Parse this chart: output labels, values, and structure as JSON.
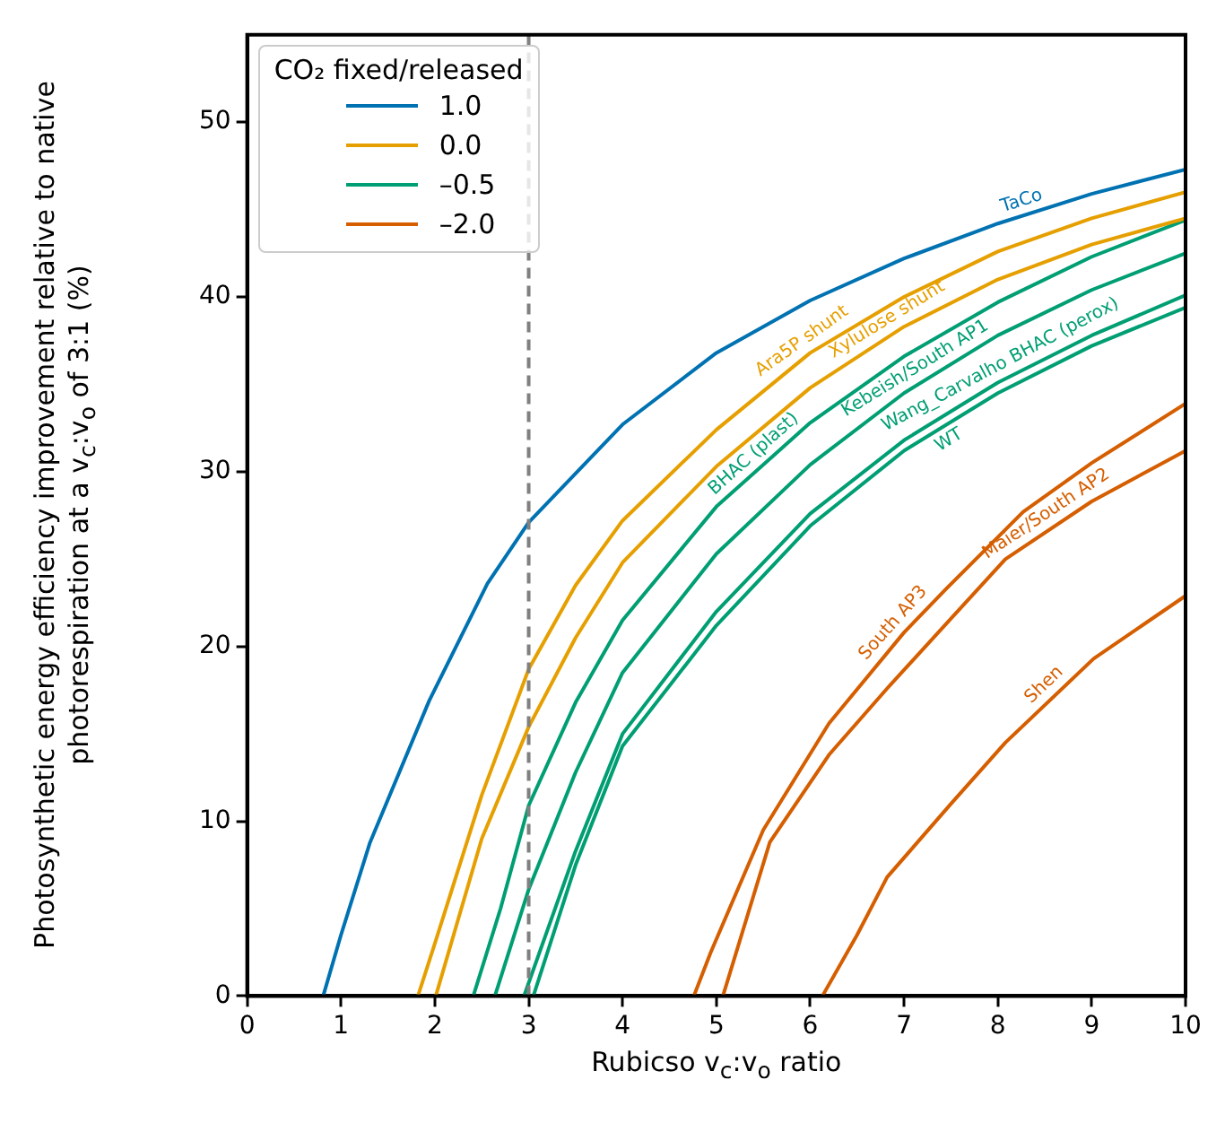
{
  "chart_data": {
    "type": "line",
    "xlabel": "Rubicso v$_{c}$:v$_{o}$ ratio",
    "ylabel": "Photosynthetic energy efficiency improvement relative to native photorespiration at a v$_{c}$:v$_{o}$ of 3:1 (%)",
    "legend_title": "CO₂ fixed/released",
    "legend": "top left",
    "marker": "none",
    "line_style": "solid",
    "grid": false,
    "xlim": [
      0,
      10
    ],
    "xticks": [
      0,
      1,
      2,
      3,
      4,
      5,
      6,
      7,
      8,
      9,
      10
    ],
    "ylim": [
      0,
      55
    ],
    "yticks": [
      0,
      10,
      20,
      30,
      40,
      50
    ],
    "ref_lines": [
      {
        "axis": "x",
        "value": 3,
        "color": "#808080",
        "line_style": "dashed"
      }
    ],
    "series": [
      {
        "name": "1.0",
        "color": "#0072b2",
        "x": [
          0.81,
          1.0,
          1.31,
          1.94,
          2.56,
          3,
          4,
          5,
          6,
          7,
          8,
          9,
          10
        ],
        "values": [
          0,
          3.5,
          8.8,
          16.9,
          23.6,
          27.1,
          32.7,
          36.8,
          39.8,
          42.2,
          44.2,
          45.9,
          47.3
        ]
      },
      {
        "name": "0.0",
        "color": "#e69f00",
        "x": [
          1.82,
          2,
          2.5,
          3,
          3.5,
          4,
          5,
          6,
          7,
          8,
          9,
          10
        ],
        "values": [
          0,
          3,
          11.5,
          18.7,
          23.5,
          27.2,
          32.4,
          36.8,
          40,
          42.6,
          44.5,
          46
        ]
      },
      {
        "color": "#e69f00",
        "x": [
          2.01,
          2.5,
          3,
          3.5,
          4,
          5,
          6,
          7,
          8,
          9,
          10
        ],
        "values": [
          0,
          9,
          15.4,
          20.5,
          24.8,
          30.3,
          34.8,
          38.3,
          41,
          43,
          44.5
        ]
      },
      {
        "name": "–0.5",
        "color": "#009e73",
        "x": [
          2.41,
          2.7,
          3,
          3.5,
          4,
          5,
          6,
          7,
          8,
          9,
          10
        ],
        "values": [
          0,
          5,
          10.9,
          16.8,
          21.5,
          28,
          32.8,
          36.6,
          39.7,
          42.3,
          44.4
        ]
      },
      {
        "color": "#009e73",
        "x": [
          2.64,
          3,
          3.5,
          4,
          5,
          6,
          7,
          8,
          9,
          10
        ],
        "values": [
          0,
          6.1,
          12.8,
          18.5,
          25.3,
          30.4,
          34.5,
          37.8,
          40.4,
          42.5
        ]
      },
      {
        "color": "#009e73",
        "x": [
          2.95,
          3.5,
          4,
          5,
          6,
          7,
          8,
          9,
          10
        ],
        "values": [
          0,
          8.3,
          15,
          22,
          27.6,
          31.8,
          35.1,
          37.8,
          40.1
        ]
      },
      {
        "color": "#009e73",
        "x": [
          3.05,
          3.5,
          4,
          5,
          6,
          7,
          8,
          9,
          10
        ],
        "values": [
          0,
          7.5,
          14.3,
          21.2,
          26.9,
          31.2,
          34.5,
          37.2,
          39.4
        ]
      },
      {
        "name": "–2.0",
        "color": "#d55e00",
        "x": [
          4.76,
          4.94,
          5.5,
          6.2,
          7,
          7.45,
          8.27,
          9,
          10
        ],
        "values": [
          0,
          2.5,
          9.5,
          15.6,
          20.8,
          23.3,
          27.7,
          30.5,
          33.9
        ]
      },
      {
        "color": "#d55e00",
        "x": [
          5.07,
          5.57,
          6.2,
          6.82,
          7.5,
          8.08,
          9,
          10
        ],
        "values": [
          0,
          8.8,
          13.8,
          17.6,
          21.6,
          25,
          28.3,
          31.2
        ]
      },
      {
        "color": "#d55e00",
        "x": [
          6.13,
          6.5,
          6.82,
          7.5,
          8.08,
          9.02,
          10
        ],
        "values": [
          0,
          3.5,
          6.8,
          11,
          14.5,
          19.3,
          22.9
        ]
      }
    ],
    "annotations": [
      {
        "text": "TaCo",
        "x": 8.3,
        "y": 44.7
      },
      {
        "text": "Ara5P shunt",
        "x": 6.0,
        "y": 36.8
      },
      {
        "text": "Xylulose shunt",
        "x": 6.9,
        "y": 38.0
      },
      {
        "text": "BHAC (plast)",
        "x": 5.5,
        "y": 30.4
      },
      {
        "text": "Kebeish/South AP1",
        "x": 7.2,
        "y": 35.2
      },
      {
        "text": "Wang_Carvalho BHAC (perox)",
        "x": 8.1,
        "y": 35.4
      },
      {
        "text": "WT",
        "x": 7.4,
        "y": 32.5
      },
      {
        "text": "South AP3",
        "x": 7.0,
        "y": 20.8
      },
      {
        "text": "Maier/South AP2",
        "x": 8.6,
        "y": 26.9
      },
      {
        "text": "Shen",
        "x": 8.6,
        "y": 17.2
      }
    ]
  }
}
